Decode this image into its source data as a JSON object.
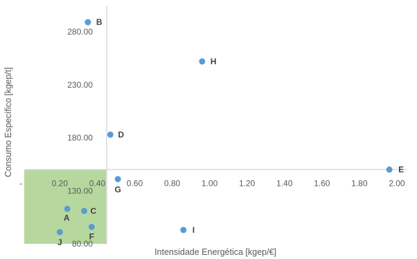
{
  "chart_data": {
    "type": "scatter",
    "title": "",
    "xlabel": "Intensidade Energética [kgep/€]",
    "ylabel": "Consumo Específico [kgep/t]",
    "xlim": [
      -0.01,
      2.0
    ],
    "ylim": [
      80,
      290
    ],
    "x_ticks": [
      0.0,
      0.2,
      0.4,
      0.6,
      0.8,
      1.0,
      1.2,
      1.4,
      1.6,
      1.8,
      2.0
    ],
    "x_tick_labels": [
      "-",
      "0.20",
      "0.40",
      "0.60",
      "0.80",
      "1.00",
      "1.20",
      "1.40",
      "1.60",
      "1.80",
      "2.00"
    ],
    "y_ticks": [
      80,
      130,
      180,
      230,
      280
    ],
    "y_tick_labels": [
      "80.00",
      "130.00",
      "180.00",
      "230.00",
      "280.00"
    ],
    "axis_crossing": {
      "x": 0.45,
      "y": 150
    },
    "highlight_region": {
      "x": [
        0.0,
        0.45
      ],
      "y": [
        80,
        150
      ],
      "color": "#a9d18e"
    },
    "grid": false,
    "legend": "none",
    "marker_color": "#5b9bd5",
    "points": [
      {
        "label": "A",
        "x": 0.24,
        "y": 113
      },
      {
        "label": "B",
        "x": 0.35,
        "y": 289
      },
      {
        "label": "C",
        "x": 0.33,
        "y": 111
      },
      {
        "label": "D",
        "x": 0.47,
        "y": 183
      },
      {
        "label": "E",
        "x": 1.96,
        "y": 150
      },
      {
        "label": "F",
        "x": 0.37,
        "y": 96
      },
      {
        "label": "G",
        "x": 0.51,
        "y": 141
      },
      {
        "label": "H",
        "x": 0.96,
        "y": 252
      },
      {
        "label": "I",
        "x": 0.86,
        "y": 93
      },
      {
        "label": "J",
        "x": 0.2,
        "y": 91
      }
    ]
  }
}
